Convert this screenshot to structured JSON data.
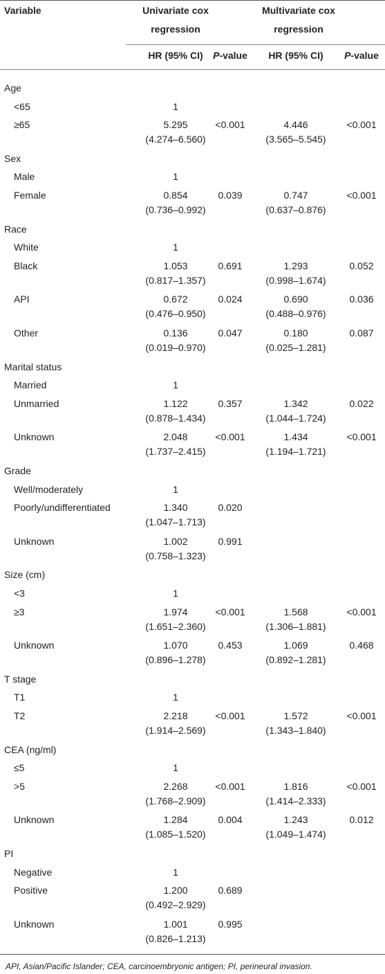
{
  "header": {
    "variable": "Variable",
    "univariate": "Univariate cox regression",
    "multivariate": "Multivariate cox regression",
    "hr": "HR (95% CI)",
    "p_italic": "P",
    "p_rest": "-value"
  },
  "rows": [
    {
      "label": "Age",
      "group": true
    },
    {
      "label": "<65",
      "uni_hr": "1"
    },
    {
      "label": "≥65",
      "uni_hr": "5.295",
      "uni_ci": "(4.274–6.560)",
      "uni_p": "<0.001",
      "multi_hr": "4.446",
      "multi_ci": "(3.565–5.545)",
      "multi_p": "<0.001"
    },
    {
      "label": "Sex",
      "group": true
    },
    {
      "label": "Male",
      "uni_hr": "1"
    },
    {
      "label": "Female",
      "uni_hr": "0.854",
      "uni_ci": "(0.736–0.992)",
      "uni_p": "0.039",
      "multi_hr": "0.747",
      "multi_ci": "(0.637–0.876)",
      "multi_p": "<0.001"
    },
    {
      "label": "Race",
      "group": true
    },
    {
      "label": "White",
      "uni_hr": "1"
    },
    {
      "label": "Black",
      "uni_hr": "1.053",
      "uni_ci": "(0.817–1.357)",
      "uni_p": "0.691",
      "multi_hr": "1.293",
      "multi_ci": "(0.998–1.674)",
      "multi_p": "0.052"
    },
    {
      "label": "API",
      "uni_hr": "0.672",
      "uni_ci": "(0.476–0.950)",
      "uni_p": "0.024",
      "multi_hr": "0.690",
      "multi_ci": "(0.488–0.976)",
      "multi_p": "0.036"
    },
    {
      "label": "Other",
      "uni_hr": "0.136",
      "uni_ci": "(0.019–0.970)",
      "uni_p": "0.047",
      "multi_hr": "0.180",
      "multi_ci": "(0.025–1.281)",
      "multi_p": "0.087"
    },
    {
      "label": "Marital status",
      "group": true
    },
    {
      "label": "Married",
      "uni_hr": "1"
    },
    {
      "label": "Unmarried",
      "uni_hr": "1.122",
      "uni_ci": "(0.878–1.434)",
      "uni_p": "0.357",
      "multi_hr": "1.342",
      "multi_ci": "(1.044–1.724)",
      "multi_p": "0.022"
    },
    {
      "label": "Unknown",
      "uni_hr": "2.048",
      "uni_ci": "(1.737–2.415)",
      "uni_p": "<0.001",
      "multi_hr": "1.434",
      "multi_ci": "(1.194–1.721)",
      "multi_p": "<0.001"
    },
    {
      "label": "Grade",
      "group": true
    },
    {
      "label": "Well/moderately",
      "uni_hr": "1"
    },
    {
      "label": "Poorly/undifferentiated",
      "uni_hr": "1.340",
      "uni_ci": "(1.047–1.713)",
      "uni_p": "0.020"
    },
    {
      "label": "Unknown",
      "uni_hr": "1.002",
      "uni_ci": "(0.758–1.323)",
      "uni_p": "0.991"
    },
    {
      "label": "Size (cm)",
      "group": true
    },
    {
      "label": "<3",
      "uni_hr": "1"
    },
    {
      "label": "≥3",
      "uni_hr": "1.974",
      "uni_ci": "(1.651–2.360)",
      "uni_p": "<0.001",
      "multi_hr": "1.568",
      "multi_ci": "(1.306–1.881)",
      "multi_p": "<0.001"
    },
    {
      "label": "Unknown",
      "uni_hr": "1.070",
      "uni_ci": "(0.896–1.278)",
      "uni_p": "0.453",
      "multi_hr": "1.069",
      "multi_ci": "(0.892–1.281)",
      "multi_p": "0.468"
    },
    {
      "label": "T stage",
      "group": true
    },
    {
      "label": "T1",
      "uni_hr": "1"
    },
    {
      "label": "T2",
      "uni_hr": "2.218",
      "uni_ci": "(1.914–2.569)",
      "uni_p": "<0.001",
      "multi_hr": "1.572",
      "multi_ci": "(1.343–1.840)",
      "multi_p": "<0.001"
    },
    {
      "label": "CEA (ng/ml)",
      "group": true
    },
    {
      "label": "≤5",
      "uni_hr": "1"
    },
    {
      "label": ">5",
      "uni_hr": "2.268",
      "uni_ci": "(1.768–2.909)",
      "uni_p": "<0.001",
      "multi_hr": "1.816",
      "multi_ci": "(1.414–2.333)",
      "multi_p": "<0.001"
    },
    {
      "label": "Unknown",
      "uni_hr": "1.284",
      "uni_ci": "(1.085–1.520)",
      "uni_p": "0.004",
      "multi_hr": "1.243",
      "multi_ci": "(1.049–1.474)",
      "multi_p": "0.012"
    },
    {
      "label": "PI",
      "group": true
    },
    {
      "label": "Negative",
      "uni_hr": "1"
    },
    {
      "label": "Positive",
      "uni_hr": "1.200",
      "uni_ci": "(0.492–2.929)",
      "uni_p": "0.689"
    },
    {
      "label": "Unknown",
      "uni_hr": "1.001",
      "uni_ci": "(0.826–1.213)",
      "uni_p": "0.995"
    }
  ],
  "footnote": "API, Asian/Pacific Islander; CEA, carcinoembryonic antigen; PI, perineural invasion."
}
